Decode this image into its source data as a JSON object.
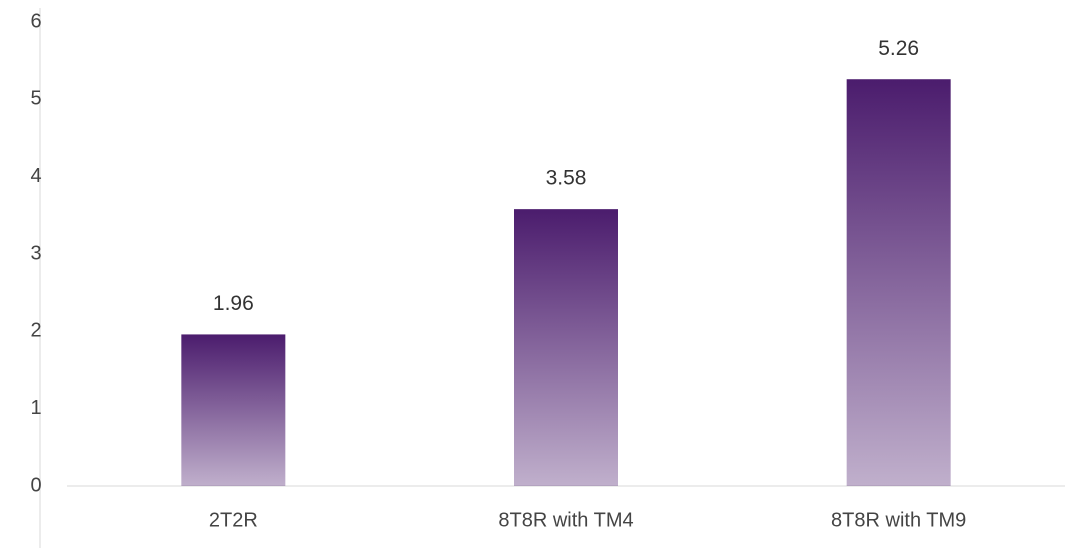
{
  "chart_data": {
    "type": "bar",
    "categories": [
      "2T2R",
      "8T8R with TM4",
      "8T8R with TM9"
    ],
    "values": [
      1.96,
      3.58,
      5.26
    ],
    "color": "#4b1c6d",
    "ylim": [
      0,
      6
    ],
    "yticks": [
      0,
      1,
      2,
      3,
      4,
      5,
      6
    ],
    "grid": false
  }
}
